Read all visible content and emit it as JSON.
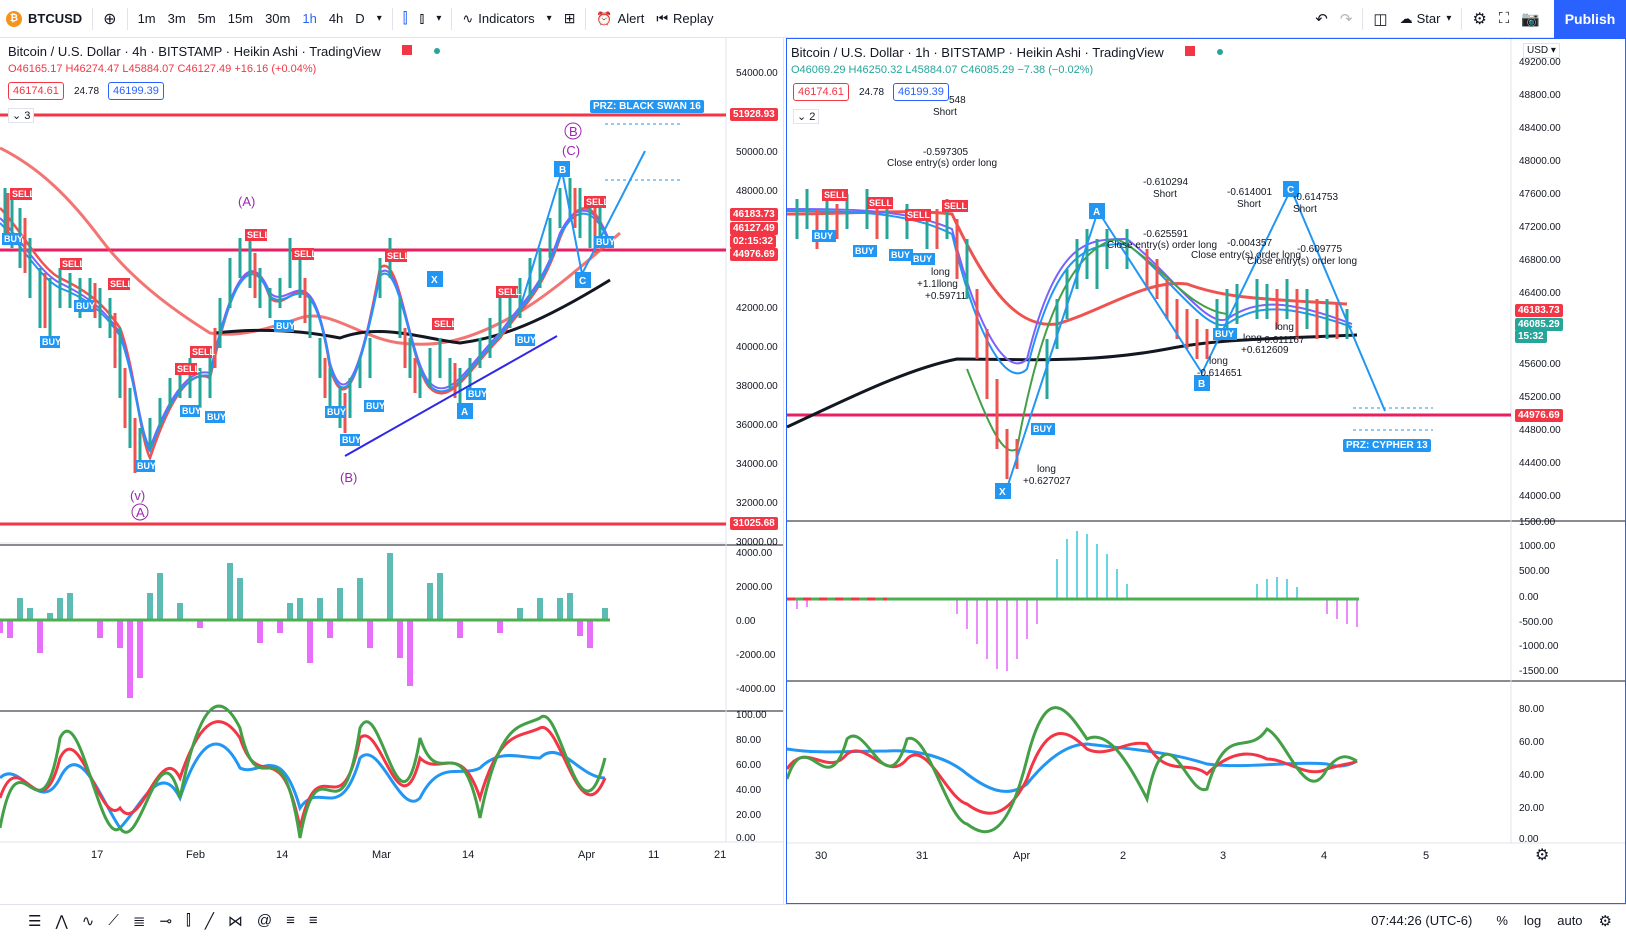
{
  "toolbar": {
    "symbol": "BTCUSD",
    "timeframes": [
      "1m",
      "3m",
      "5m",
      "15m",
      "30m",
      "1h",
      "4h",
      "D"
    ],
    "active_timeframe": "1h",
    "indicators_label": "Indicators",
    "alert_label": "Alert",
    "replay_label": "Replay",
    "star_label": "Star",
    "publish_label": "Publish"
  },
  "left_chart": {
    "title": "Bitcoin / U.S. Dollar · 4h · BITSTAMP · Heikin Ashi · TradingView",
    "ohlc": {
      "o": "O46165.17",
      "h": "H46274.47",
      "l": "L45884.07",
      "c": "C46127.49",
      "chg": "+16.16 (+0.04%)"
    },
    "bid": "46174.61",
    "spread": "24.78",
    "ask": "46199.39",
    "indicator_count": "3",
    "prz_label": "PRZ: BLACK SWAN 16",
    "price_axis": [
      "54000.00",
      "52000.00",
      "50000.00",
      "48000.00",
      "46000.00",
      "44000.00",
      "42000.00",
      "40000.00",
      "38000.00",
      "36000.00",
      "34000.00",
      "32000.00",
      "30000.00"
    ],
    "price_tags": [
      {
        "value": "51928.93",
        "color": "#f23645"
      },
      {
        "value": "46183.73",
        "color": "#f23645"
      },
      {
        "value": "46127.49",
        "color": "#f23645"
      },
      {
        "value": "02:15:32",
        "color": "#f23645"
      },
      {
        "value": "44976.69",
        "color": "#f23645"
      },
      {
        "value": "31025.68",
        "color": "#f23645"
      }
    ],
    "macd_axis": [
      "4000.00",
      "2000.00",
      "0.00",
      "-2000.00",
      "-4000.00"
    ],
    "rsi_axis": [
      "100.00",
      "80.00",
      "60.00",
      "40.00",
      "20.00",
      "0.00"
    ],
    "time_axis": [
      "17",
      "Feb",
      "14",
      "Mar",
      "14",
      "Apr",
      "11",
      "21"
    ],
    "wave_labels": [
      "(A)",
      "(B)",
      "(C)",
      "B",
      "(v)",
      "A"
    ]
  },
  "right_chart": {
    "title": "Bitcoin / U.S. Dollar · 1h · BITSTAMP · Heikin Ashi · TradingView",
    "ohlc": {
      "o": "O46069.29",
      "h": "H46250.32",
      "l": "L45884.07",
      "c": "C46085.29",
      "chg": "−7.38 (−0.02%)"
    },
    "bid": "46174.61",
    "spread": "24.78",
    "ask": "46199.39",
    "indicator_count": "2",
    "currency": "USD",
    "prz_label": "PRZ: CYPHER 13",
    "price_axis": [
      "49200.00",
      "48800.00",
      "48400.00",
      "48000.00",
      "47600.00",
      "47200.00",
      "46800.00",
      "46400.00",
      "46000.00",
      "45600.00",
      "45200.00",
      "44800.00",
      "44400.00",
      "44000.00"
    ],
    "price_tags": [
      {
        "value": "46183.73",
        "color": "#f23645"
      },
      {
        "value": "46085.29",
        "color": "#26a69a"
      },
      {
        "value": "15:32",
        "color": "#26a69a"
      },
      {
        "value": "44976.69",
        "color": "#f23645"
      }
    ],
    "macd_axis": [
      "1500.00",
      "1000.00",
      "500.00",
      "0.00",
      "-500.00",
      "-1000.00",
      "-1500.00"
    ],
    "rsi_axis": [
      "80.00",
      "60.00",
      "40.00",
      "20.00",
      "0.00"
    ],
    "time_axis": [
      "30",
      "31",
      "Apr",
      "2",
      "3",
      "4",
      "5"
    ],
    "annotations": [
      {
        "text": "548"
      },
      {
        "text": "Short"
      },
      {
        "text": "-0.597305"
      },
      {
        "text": "Close entry(s) order long"
      },
      {
        "text": "-0.610294"
      },
      {
        "text": "Short"
      },
      {
        "text": "-0.625591"
      },
      {
        "text": "Close entry(s) order long"
      },
      {
        "text": "-0.614001"
      },
      {
        "text": "Short"
      },
      {
        "text": "-0.004357"
      },
      {
        "text": "Close entry(s) order long"
      },
      {
        "text": "-0.614753"
      },
      {
        "text": "Short"
      },
      {
        "text": "-0.609775"
      },
      {
        "text": "Close entry(s) order long"
      },
      {
        "text": "long"
      },
      {
        "text": "+1.1llong"
      },
      {
        "text": "+0.59711"
      },
      {
        "text": "long"
      },
      {
        "text": "-0.614651"
      },
      {
        "text": "long"
      },
      {
        "text": "+0.612609"
      },
      {
        "text": "long"
      },
      {
        "text": "-0.611167"
      },
      {
        "text": "long"
      },
      {
        "text": "+0.627027"
      }
    ],
    "pattern_points": [
      "X",
      "A",
      "B",
      "C"
    ]
  },
  "status": {
    "time": "07:44:26 (UTC-6)",
    "percent": "%",
    "log": "log",
    "auto": "auto"
  },
  "colors": {
    "red_line": "#f23645",
    "pink_line": "#e91e63",
    "blue_label": "#2196f3",
    "buy_blue": "#2196f3",
    "sell_red": "#f23645",
    "accent": "#2962ff"
  }
}
